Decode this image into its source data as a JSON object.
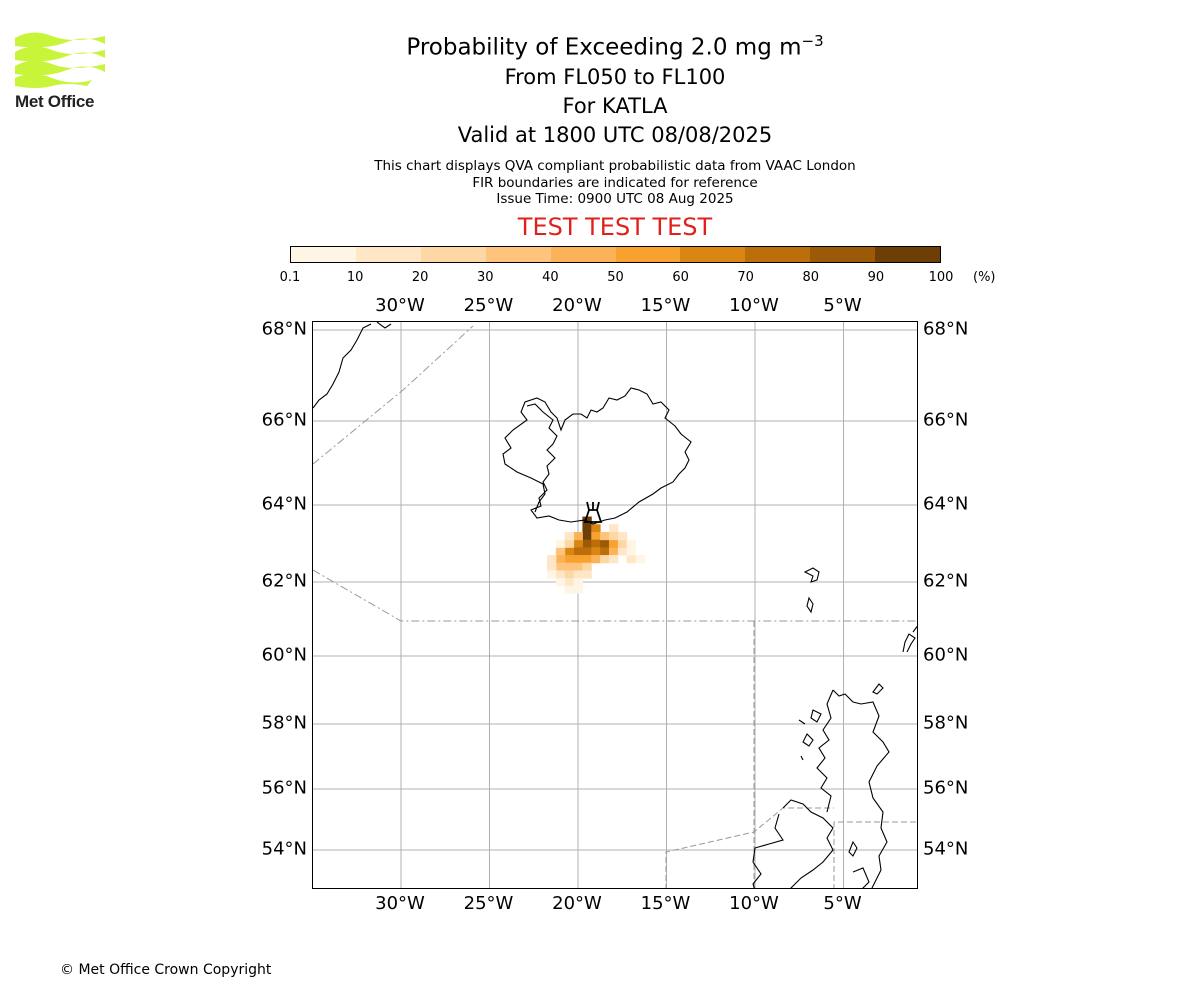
{
  "header": {
    "title_prefix": "Probability of Exceeding 2.0 mg m",
    "title_exponent": "−3",
    "levels": "From FL050 to FL100",
    "volcano": "For KATLA",
    "valid": "Valid at 1800 UTC 08/08/2025"
  },
  "notes": {
    "line1": "This chart displays QVA compliant probabilistic data from VAAC London",
    "line2": "FIR boundaries are indicated for reference",
    "line3": "Issue Time: 0900 UTC 08 Aug 2025"
  },
  "test_banner": "TEST TEST TEST",
  "logo": {
    "text": "Met Office",
    "color": "#c8f53a"
  },
  "colorbar": {
    "ticks": [
      "0.1",
      "10",
      "20",
      "30",
      "40",
      "50",
      "60",
      "70",
      "80",
      "90",
      "100"
    ],
    "unit": "(%)",
    "colors": [
      "#fff5e5",
      "#fee6c6",
      "#fed8a4",
      "#fec47e",
      "#fbb259",
      "#f9a12e",
      "#d98712",
      "#bc6e0b",
      "#9c5908",
      "#6d3f07"
    ]
  },
  "map": {
    "lon_labels": [
      "30°W",
      "25°W",
      "20°W",
      "15°W",
      "10°W",
      "5°W"
    ],
    "lon_values": [
      -30,
      -25,
      -20,
      -15,
      -10,
      -5
    ],
    "lat_labels": [
      "68°N",
      "66°N",
      "64°N",
      "62°N",
      "60°N",
      "58°N",
      "56°N",
      "54°N"
    ],
    "lat_values": [
      68,
      66,
      64,
      62,
      60,
      58,
      56,
      54
    ],
    "volcano_marker": "volcano-icon",
    "probability_cells": [
      {
        "lon": -19.5,
        "lat": 63.6,
        "p": 92
      },
      {
        "lon": -19.5,
        "lat": 63.4,
        "p": 95
      },
      {
        "lon": -19.5,
        "lat": 63.2,
        "p": 90
      },
      {
        "lon": -19.5,
        "lat": 63.0,
        "p": 85
      },
      {
        "lon": -19.5,
        "lat": 62.8,
        "p": 72
      },
      {
        "lon": -19.0,
        "lat": 63.4,
        "p": 60
      },
      {
        "lon": -19.0,
        "lat": 63.2,
        "p": 55
      },
      {
        "lon": -19.0,
        "lat": 63.0,
        "p": 75
      },
      {
        "lon": -19.0,
        "lat": 62.8,
        "p": 65
      },
      {
        "lon": -18.5,
        "lat": 63.0,
        "p": 80
      },
      {
        "lon": -18.5,
        "lat": 62.8,
        "p": 70
      },
      {
        "lon": -20.0,
        "lat": 63.0,
        "p": 65
      },
      {
        "lon": -20.0,
        "lat": 62.8,
        "p": 70
      },
      {
        "lon": -20.5,
        "lat": 62.8,
        "p": 60
      },
      {
        "lon": -20.5,
        "lat": 62.6,
        "p": 55
      },
      {
        "lon": -20.0,
        "lat": 62.6,
        "p": 50
      },
      {
        "lon": -19.5,
        "lat": 62.6,
        "p": 55
      },
      {
        "lon": -19.0,
        "lat": 62.6,
        "p": 45
      },
      {
        "lon": -18.0,
        "lat": 62.8,
        "p": 40
      },
      {
        "lon": -18.0,
        "lat": 63.0,
        "p": 50
      },
      {
        "lon": -18.5,
        "lat": 63.2,
        "p": 35
      },
      {
        "lon": -20.0,
        "lat": 63.2,
        "p": 40
      },
      {
        "lon": -21.0,
        "lat": 62.8,
        "p": 35
      },
      {
        "lon": -21.0,
        "lat": 62.6,
        "p": 40
      },
      {
        "lon": -21.0,
        "lat": 62.4,
        "p": 30
      },
      {
        "lon": -20.5,
        "lat": 62.4,
        "p": 38
      },
      {
        "lon": -20.0,
        "lat": 62.4,
        "p": 30
      },
      {
        "lon": -19.5,
        "lat": 62.4,
        "p": 25
      },
      {
        "lon": -17.5,
        "lat": 62.8,
        "p": 15
      },
      {
        "lon": -17.0,
        "lat": 62.6,
        "p": 10
      },
      {
        "lon": -17.5,
        "lat": 63.0,
        "p": 20
      },
      {
        "lon": -17.5,
        "lat": 63.2,
        "p": 12
      },
      {
        "lon": -18.0,
        "lat": 63.4,
        "p": 10
      },
      {
        "lon": -21.5,
        "lat": 62.6,
        "p": 15
      },
      {
        "lon": -21.5,
        "lat": 62.4,
        "p": 12
      },
      {
        "lon": -21.5,
        "lat": 62.2,
        "p": 8
      },
      {
        "lon": -21.0,
        "lat": 62.2,
        "p": 18
      },
      {
        "lon": -20.5,
        "lat": 62.2,
        "p": 20
      },
      {
        "lon": -20.0,
        "lat": 62.2,
        "p": 15
      },
      {
        "lon": -19.5,
        "lat": 62.2,
        "p": 12
      },
      {
        "lon": -20.5,
        "lat": 62.0,
        "p": 10
      },
      {
        "lon": -20.0,
        "lat": 62.0,
        "p": 8
      },
      {
        "lon": -21.0,
        "lat": 62.0,
        "p": 6
      },
      {
        "lon": -20.5,
        "lat": 61.8,
        "p": 5
      },
      {
        "lon": -20.0,
        "lat": 61.8,
        "p": 4
      },
      {
        "lon": -18.5,
        "lat": 62.6,
        "p": 20
      },
      {
        "lon": -18.0,
        "lat": 62.6,
        "p": 15
      },
      {
        "lon": -21.0,
        "lat": 63.0,
        "p": 8
      },
      {
        "lon": -20.5,
        "lat": 63.0,
        "p": 25
      },
      {
        "lon": -20.5,
        "lat": 63.2,
        "p": 10
      },
      {
        "lon": -18.0,
        "lat": 63.2,
        "p": 20
      },
      {
        "lon": -17.0,
        "lat": 62.8,
        "p": 8
      },
      {
        "lon": -16.5,
        "lat": 62.6,
        "p": 5
      },
      {
        "lon": -17.0,
        "lat": 63.0,
        "p": 6
      }
    ]
  },
  "footer": {
    "copyright": "© Met Office Crown Copyright"
  }
}
